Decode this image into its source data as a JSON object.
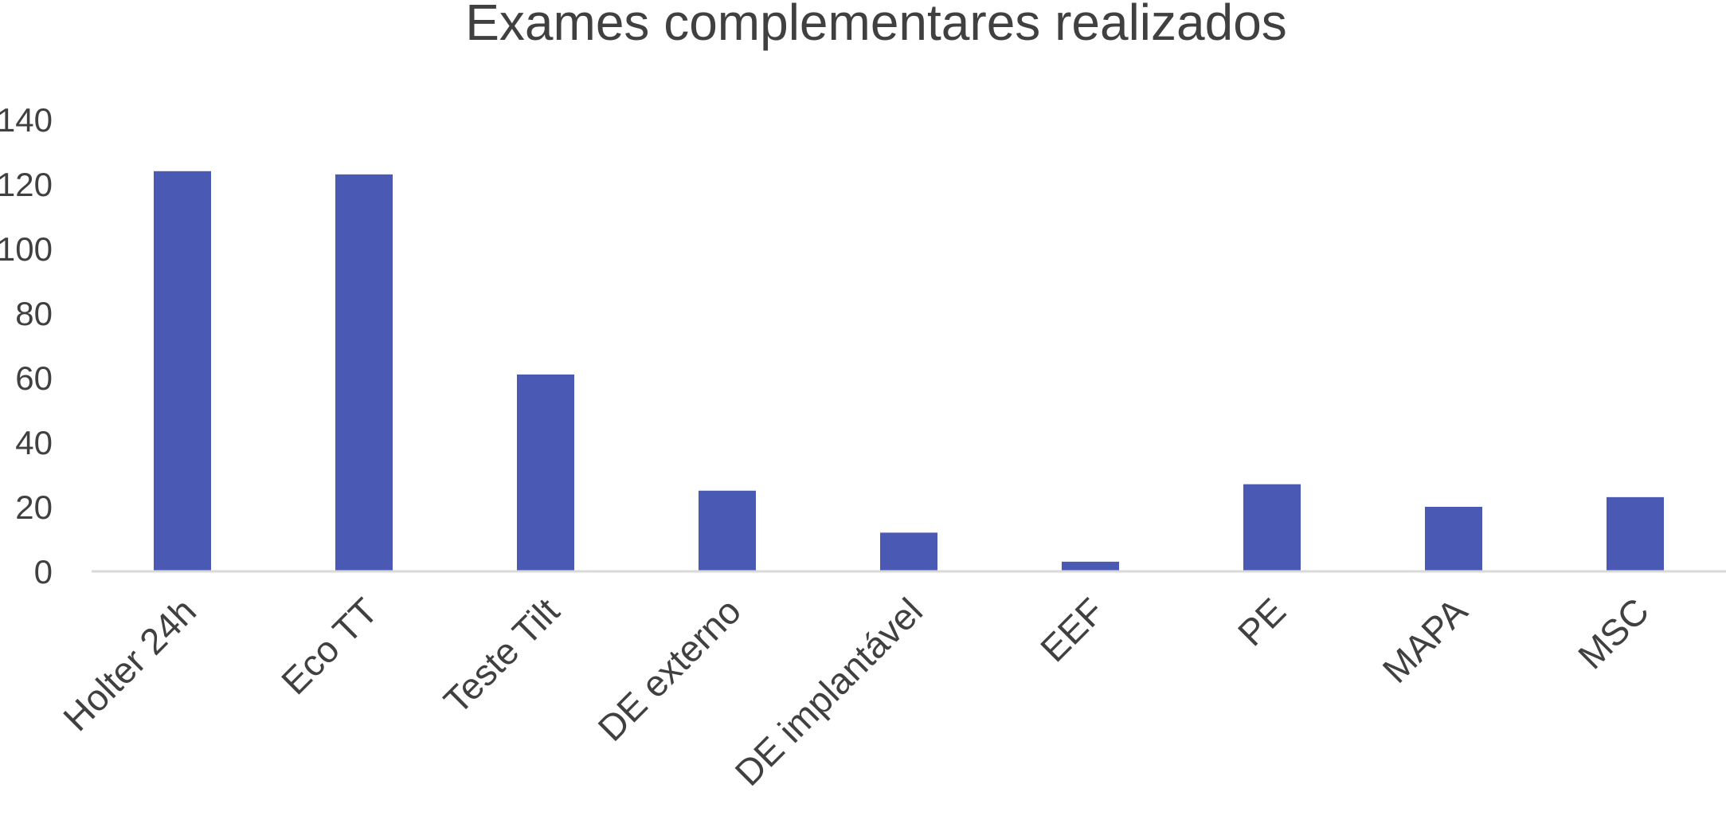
{
  "chart_data": {
    "type": "bar",
    "title": "Exames complementares realizados",
    "xlabel": "",
    "ylabel": "",
    "categories": [
      "Holter 24h",
      "Eco TT",
      "Teste Tilt",
      "DE externo",
      "DE implantável",
      "EEF",
      "PE",
      "MAPA",
      "MSC"
    ],
    "values": [
      124,
      123,
      61,
      25,
      12,
      3,
      27,
      20,
      23
    ],
    "ylim": [
      0,
      140
    ],
    "yticks": [
      "0",
      "20",
      "40",
      "60",
      "80",
      "100",
      "120",
      "140"
    ],
    "grid": false,
    "legend": "none",
    "bar_color": "#4a5ab4",
    "axis_color": "#d9d9d9",
    "text_color": "#404040"
  }
}
